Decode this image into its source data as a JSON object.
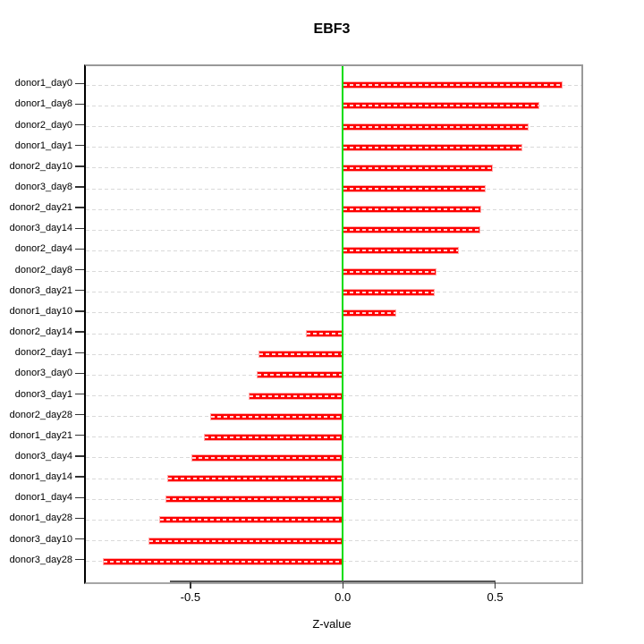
{
  "title": "EBF3",
  "chart_data": {
    "type": "bar",
    "orientation": "horizontal",
    "title": "EBF3",
    "xlabel": "Z-value",
    "ylabel": "",
    "categories": [
      "donor1_day0",
      "donor1_day8",
      "donor2_day0",
      "donor1_day1",
      "donor2_day10",
      "donor3_day8",
      "donor2_day21",
      "donor3_day14",
      "donor2_day4",
      "donor2_day8",
      "donor3_day21",
      "donor1_day10",
      "donor2_day14",
      "donor2_day1",
      "donor3_day0",
      "donor3_day1",
      "donor2_day28",
      "donor1_day21",
      "donor3_day4",
      "donor1_day14",
      "donor1_day4",
      "donor1_day28",
      "donor3_day10",
      "donor3_day28"
    ],
    "values": [
      0.72,
      0.645,
      0.61,
      0.588,
      0.493,
      0.47,
      0.454,
      0.45,
      0.38,
      0.309,
      0.301,
      0.175,
      -0.12,
      -0.276,
      -0.282,
      -0.31,
      -0.434,
      -0.457,
      -0.496,
      -0.576,
      -0.582,
      -0.603,
      -0.637,
      -0.788
    ],
    "x_ticks": [
      -0.5,
      0.0,
      0.5
    ],
    "x_tick_labels": [
      "-0.5",
      "0.0",
      "0.5"
    ],
    "xlim": [
      -0.843,
      0.783
    ],
    "grid": true,
    "grid_style": "dashed-horizontal",
    "legend": false,
    "colors": {
      "bar": "#fe0000",
      "bar_border": "#ffaaaa",
      "zero_line": "#00dd00",
      "grid": "#d9d9d9",
      "box": "#999999",
      "axis": "#333333"
    }
  }
}
